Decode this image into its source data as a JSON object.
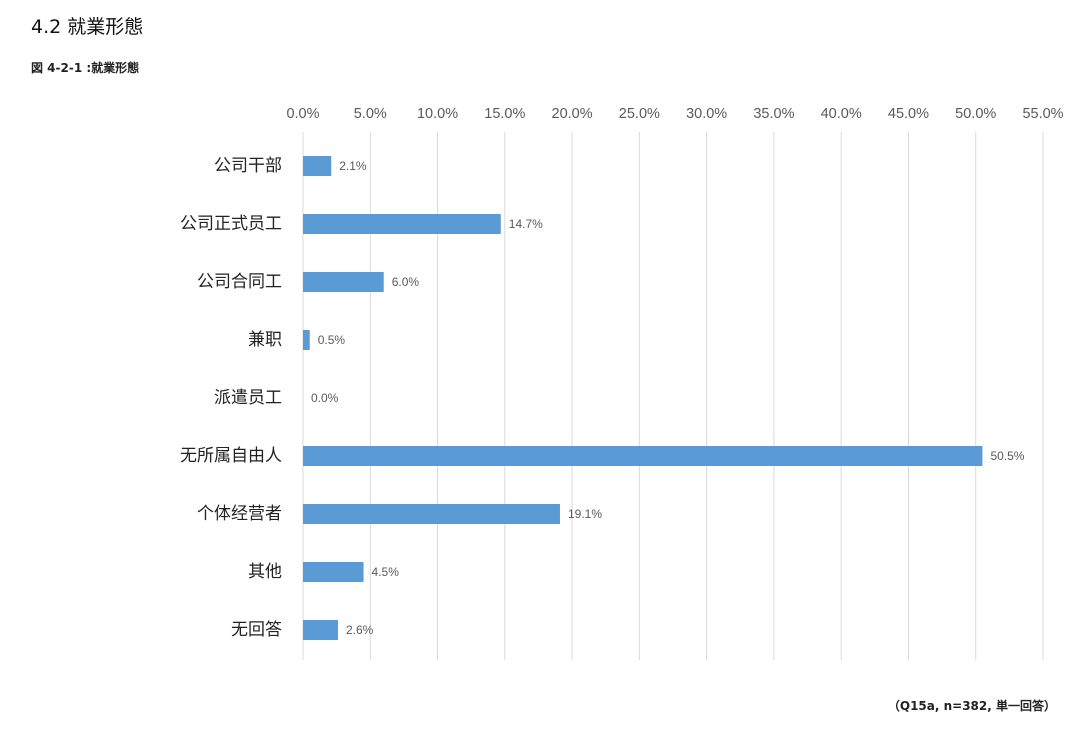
{
  "header": {
    "section_title": "4.2 就業形態",
    "figure_title": "図 4-2-1 :就業形態"
  },
  "footer": {
    "source_note": "（Q15a, n=382, 単一回答）"
  },
  "colors": {
    "bar": "#5B9BD5",
    "grid": "#D9D9D9",
    "text": "#595959"
  },
  "chart_data": {
    "type": "bar",
    "orientation": "horizontal",
    "categories": [
      "公司干部",
      "公司正式员工",
      "公司合同工",
      "兼职",
      "派遣员工",
      "无所属自由人",
      "个体经营者",
      "其他",
      "无回答"
    ],
    "values": [
      2.1,
      14.7,
      6.0,
      0.5,
      0.0,
      50.5,
      19.1,
      4.5,
      2.6
    ],
    "data_labels": [
      "2.1%",
      "14.7%",
      "6.0%",
      "0.5%",
      "0.0%",
      "50.5%",
      "19.1%",
      "4.5%",
      "2.6%"
    ],
    "ticks": [
      0,
      5,
      10,
      15,
      20,
      25,
      30,
      35,
      40,
      45,
      50,
      55
    ],
    "tick_labels": [
      "0.0%",
      "5.0%",
      "10.0%",
      "15.0%",
      "20.0%",
      "25.0%",
      "30.0%",
      "35.0%",
      "40.0%",
      "45.0%",
      "50.0%",
      "55.0%"
    ],
    "xlim": [
      0,
      55
    ],
    "axis_position": "top",
    "grid": true,
    "legend": false
  }
}
